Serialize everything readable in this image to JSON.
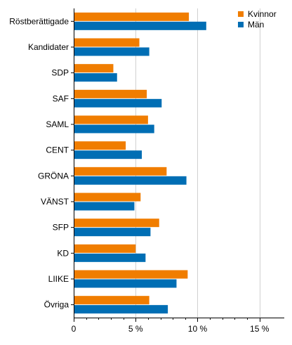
{
  "chart_data": {
    "type": "bar",
    "orientation": "horizontal",
    "categories": [
      "Röstberättigade",
      "Kandidater",
      "SDP",
      "SAF",
      "SAML",
      "CENT",
      "GRÖNA",
      "VÄNST",
      "SFP",
      "KD",
      "LIIKE",
      "Övriga"
    ],
    "series": [
      {
        "name": "Kvinnor",
        "color": "#f07d00",
        "values": [
          9.3,
          5.3,
          3.2,
          5.9,
          6.0,
          4.2,
          7.5,
          5.4,
          6.9,
          5.0,
          9.2,
          6.1
        ]
      },
      {
        "name": "Män",
        "color": "#006eb4",
        "values": [
          10.7,
          6.1,
          3.5,
          7.1,
          6.5,
          5.5,
          9.1,
          4.9,
          6.2,
          5.8,
          8.3,
          7.6
        ]
      }
    ],
    "xlim": [
      0,
      17
    ],
    "xticks": [
      0,
      5,
      10,
      15
    ],
    "xtick_labels": [
      "0",
      "5 %",
      "10 %",
      "15 %"
    ],
    "grid": true,
    "legend_position": "top-right",
    "title": "",
    "xlabel": "",
    "ylabel": ""
  }
}
